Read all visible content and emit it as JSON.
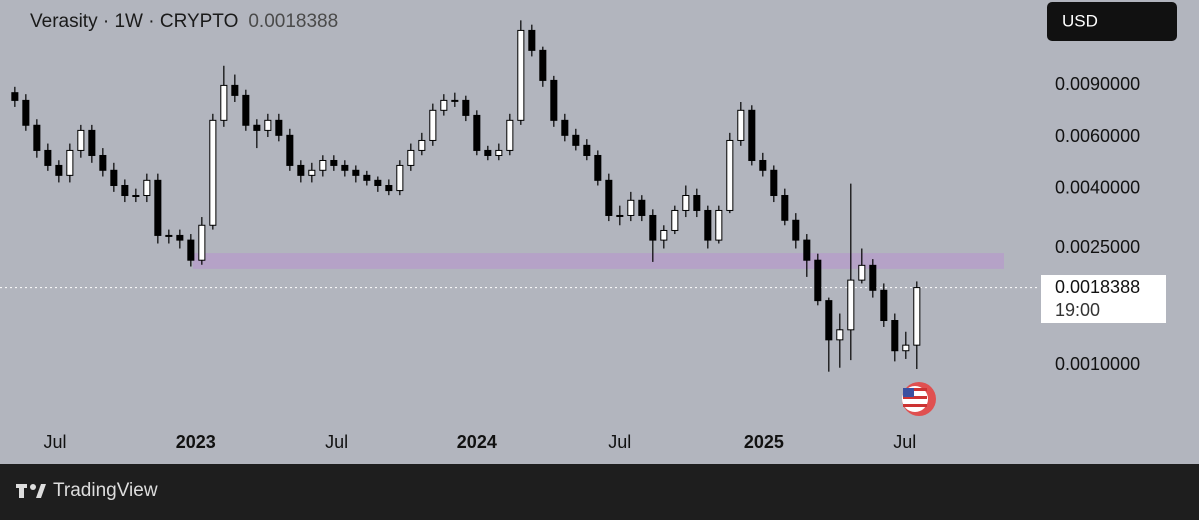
{
  "chart_data": {
    "type": "candlestick",
    "title": "Verasity · 1W · CRYPTO",
    "last_value": 0.0018388,
    "countdown": "19:00",
    "currency": "USD",
    "log_scale": true,
    "up_color": "#ffffff",
    "down_color": "#000000",
    "band_color": "#b59fc9",
    "band": [
      0.00213,
      0.00241
    ],
    "xlim": [
      -2.7,
      186.4
    ],
    "xticks": [
      {
        "value": 7.3,
        "label": "Jul"
      },
      {
        "value": 32.9,
        "label": "2023"
      },
      {
        "value": 58.5,
        "label": "Jul"
      },
      {
        "value": 84,
        "label": "2024"
      },
      {
        "value": 110,
        "label": "Jul"
      },
      {
        "value": 136.2,
        "label": "2025"
      },
      {
        "value": 161.8,
        "label": "Jul"
      }
    ],
    "ylim": [
      0.00065,
      0.0176
    ],
    "yticks": [
      {
        "value": 0.009,
        "label": "0.0090000"
      },
      {
        "value": 0.006,
        "label": "0.0060000"
      },
      {
        "value": 0.004,
        "label": "0.0040000"
      },
      {
        "value": 0.0025,
        "label": "0.0025000"
      },
      {
        "value": 0.001,
        "label": "0.0010000"
      }
    ],
    "x": [
      0,
      2,
      4,
      6,
      8,
      10,
      12,
      14,
      16,
      18,
      20,
      22,
      24,
      26,
      28,
      30,
      32,
      34,
      36,
      38,
      40,
      42,
      44,
      46,
      48,
      50,
      52,
      54,
      56,
      58,
      60,
      62,
      64,
      66,
      68,
      70,
      72,
      74,
      76,
      78,
      80,
      82,
      84,
      86,
      88,
      90,
      92,
      94,
      96,
      98,
      100,
      102,
      104,
      106,
      108,
      110,
      112,
      114,
      116,
      118,
      120,
      122,
      124,
      126,
      128,
      130,
      132,
      134,
      136,
      138,
      140,
      142,
      144,
      146,
      148,
      150,
      152,
      154,
      156,
      158,
      160,
      162,
      164
    ],
    "open": [
      0.0085,
      0.008,
      0.00658,
      0.0054,
      0.0048,
      0.00444,
      0.0054,
      0.00632,
      0.00519,
      0.00462,
      0.0041,
      0.00379,
      0.00379,
      0.00427,
      0.00277,
      0.00277,
      0.00267,
      0.00228,
      0.003,
      0.00684,
      0.009,
      0.00832,
      0.00658,
      0.00632,
      0.00684,
      0.00608,
      0.0048,
      0.00444,
      0.00462,
      0.00499,
      0.0048,
      0.00462,
      0.00444,
      0.00427,
      0.0041,
      0.00394,
      0.0048,
      0.0054,
      0.00584,
      0.0074,
      0.008,
      0.008,
      0.00711,
      0.0054,
      0.00519,
      0.0054,
      0.00684,
      0.01386,
      0.01185,
      0.00936,
      0.00684,
      0.00608,
      0.00562,
      0.00519,
      0.00427,
      0.00324,
      0.00324,
      0.00365,
      0.00324,
      0.00267,
      0.00288,
      0.00337,
      0.00379,
      0.00337,
      0.00267,
      0.00337,
      0.00584,
      0.0074,
      0.00499,
      0.00462,
      0.00379,
      0.00312,
      0.00267,
      0.00228,
      0.00166,
      0.00122,
      0.00132,
      0.00195,
      0.00219,
      0.0018,
      0.00142,
      0.00112,
      0.00117
    ],
    "high": [
      0.0089,
      0.0084,
      0.0069,
      0.0057,
      0.005,
      0.0057,
      0.0066,
      0.0066,
      0.0055,
      0.0049,
      0.0043,
      0.004,
      0.0045,
      0.0045,
      0.0029,
      0.0029,
      0.0028,
      0.0032,
      0.0072,
      0.0105,
      0.0098,
      0.0087,
      0.0069,
      0.0072,
      0.0072,
      0.0064,
      0.005,
      0.0049,
      0.0052,
      0.0052,
      0.005,
      0.0048,
      0.0046,
      0.0044,
      0.0043,
      0.005,
      0.0057,
      0.0062,
      0.0078,
      0.0084,
      0.0085,
      0.0083,
      0.0074,
      0.0056,
      0.0057,
      0.0072,
      0.015,
      0.0145,
      0.0122,
      0.0097,
      0.0072,
      0.0064,
      0.0059,
      0.0054,
      0.0045,
      0.0035,
      0.0039,
      0.0038,
      0.0034,
      0.003,
      0.0035,
      0.0041,
      0.004,
      0.0035,
      0.0035,
      0.0062,
      0.0079,
      0.0077,
      0.0053,
      0.0048,
      0.004,
      0.0033,
      0.0028,
      0.0024,
      0.0017,
      0.0015,
      0.00416,
      0.0025,
      0.0023,
      0.0019,
      0.0015,
      0.0013,
      0.00193
    ],
    "low": [
      0.0076,
      0.0063,
      0.0051,
      0.0046,
      0.0042,
      0.0042,
      0.0051,
      0.0049,
      0.0044,
      0.0039,
      0.0036,
      0.0036,
      0.0036,
      0.0026,
      0.0026,
      0.0025,
      0.00217,
      0.0022,
      0.0029,
      0.0065,
      0.0079,
      0.0063,
      0.0055,
      0.006,
      0.0058,
      0.0046,
      0.0042,
      0.0042,
      0.0044,
      0.0046,
      0.0044,
      0.0042,
      0.0041,
      0.0039,
      0.0038,
      0.0038,
      0.0046,
      0.0052,
      0.0056,
      0.0071,
      0.0076,
      0.0068,
      0.0052,
      0.005,
      0.005,
      0.0052,
      0.0066,
      0.0113,
      0.0089,
      0.0065,
      0.0058,
      0.0054,
      0.005,
      0.0041,
      0.0031,
      0.003,
      0.0031,
      0.0031,
      0.00225,
      0.0025,
      0.0028,
      0.0032,
      0.0032,
      0.0025,
      0.0026,
      0.0033,
      0.0056,
      0.0048,
      0.0044,
      0.0036,
      0.003,
      0.0025,
      0.002,
      0.0016,
      0.00095,
      0.00098,
      0.00104,
      0.0019,
      0.0017,
      0.00135,
      0.00103,
      0.00105,
      0.00097
    ],
    "close": [
      0.008,
      0.00658,
      0.0054,
      0.0048,
      0.00444,
      0.0054,
      0.00632,
      0.00519,
      0.00462,
      0.0041,
      0.00379,
      0.00379,
      0.00427,
      0.00277,
      0.00277,
      0.00267,
      0.00228,
      0.003,
      0.00684,
      0.009,
      0.00832,
      0.00658,
      0.00632,
      0.00684,
      0.00608,
      0.0048,
      0.00444,
      0.00462,
      0.00499,
      0.0048,
      0.00462,
      0.00444,
      0.00427,
      0.0041,
      0.00394,
      0.0048,
      0.0054,
      0.00584,
      0.0074,
      0.008,
      0.008,
      0.00711,
      0.0054,
      0.00519,
      0.0054,
      0.00684,
      0.01386,
      0.01185,
      0.00936,
      0.00684,
      0.00608,
      0.00562,
      0.00519,
      0.00427,
      0.00324,
      0.00324,
      0.00365,
      0.00324,
      0.00267,
      0.00288,
      0.00337,
      0.00379,
      0.00337,
      0.00267,
      0.00337,
      0.00584,
      0.0074,
      0.00499,
      0.00462,
      0.00379,
      0.00312,
      0.00267,
      0.00228,
      0.00166,
      0.00122,
      0.00132,
      0.00195,
      0.00219,
      0.0018,
      0.00142,
      0.00112,
      0.00117,
      0.0018388
    ]
  },
  "footer": {
    "brand": "TradingView"
  }
}
